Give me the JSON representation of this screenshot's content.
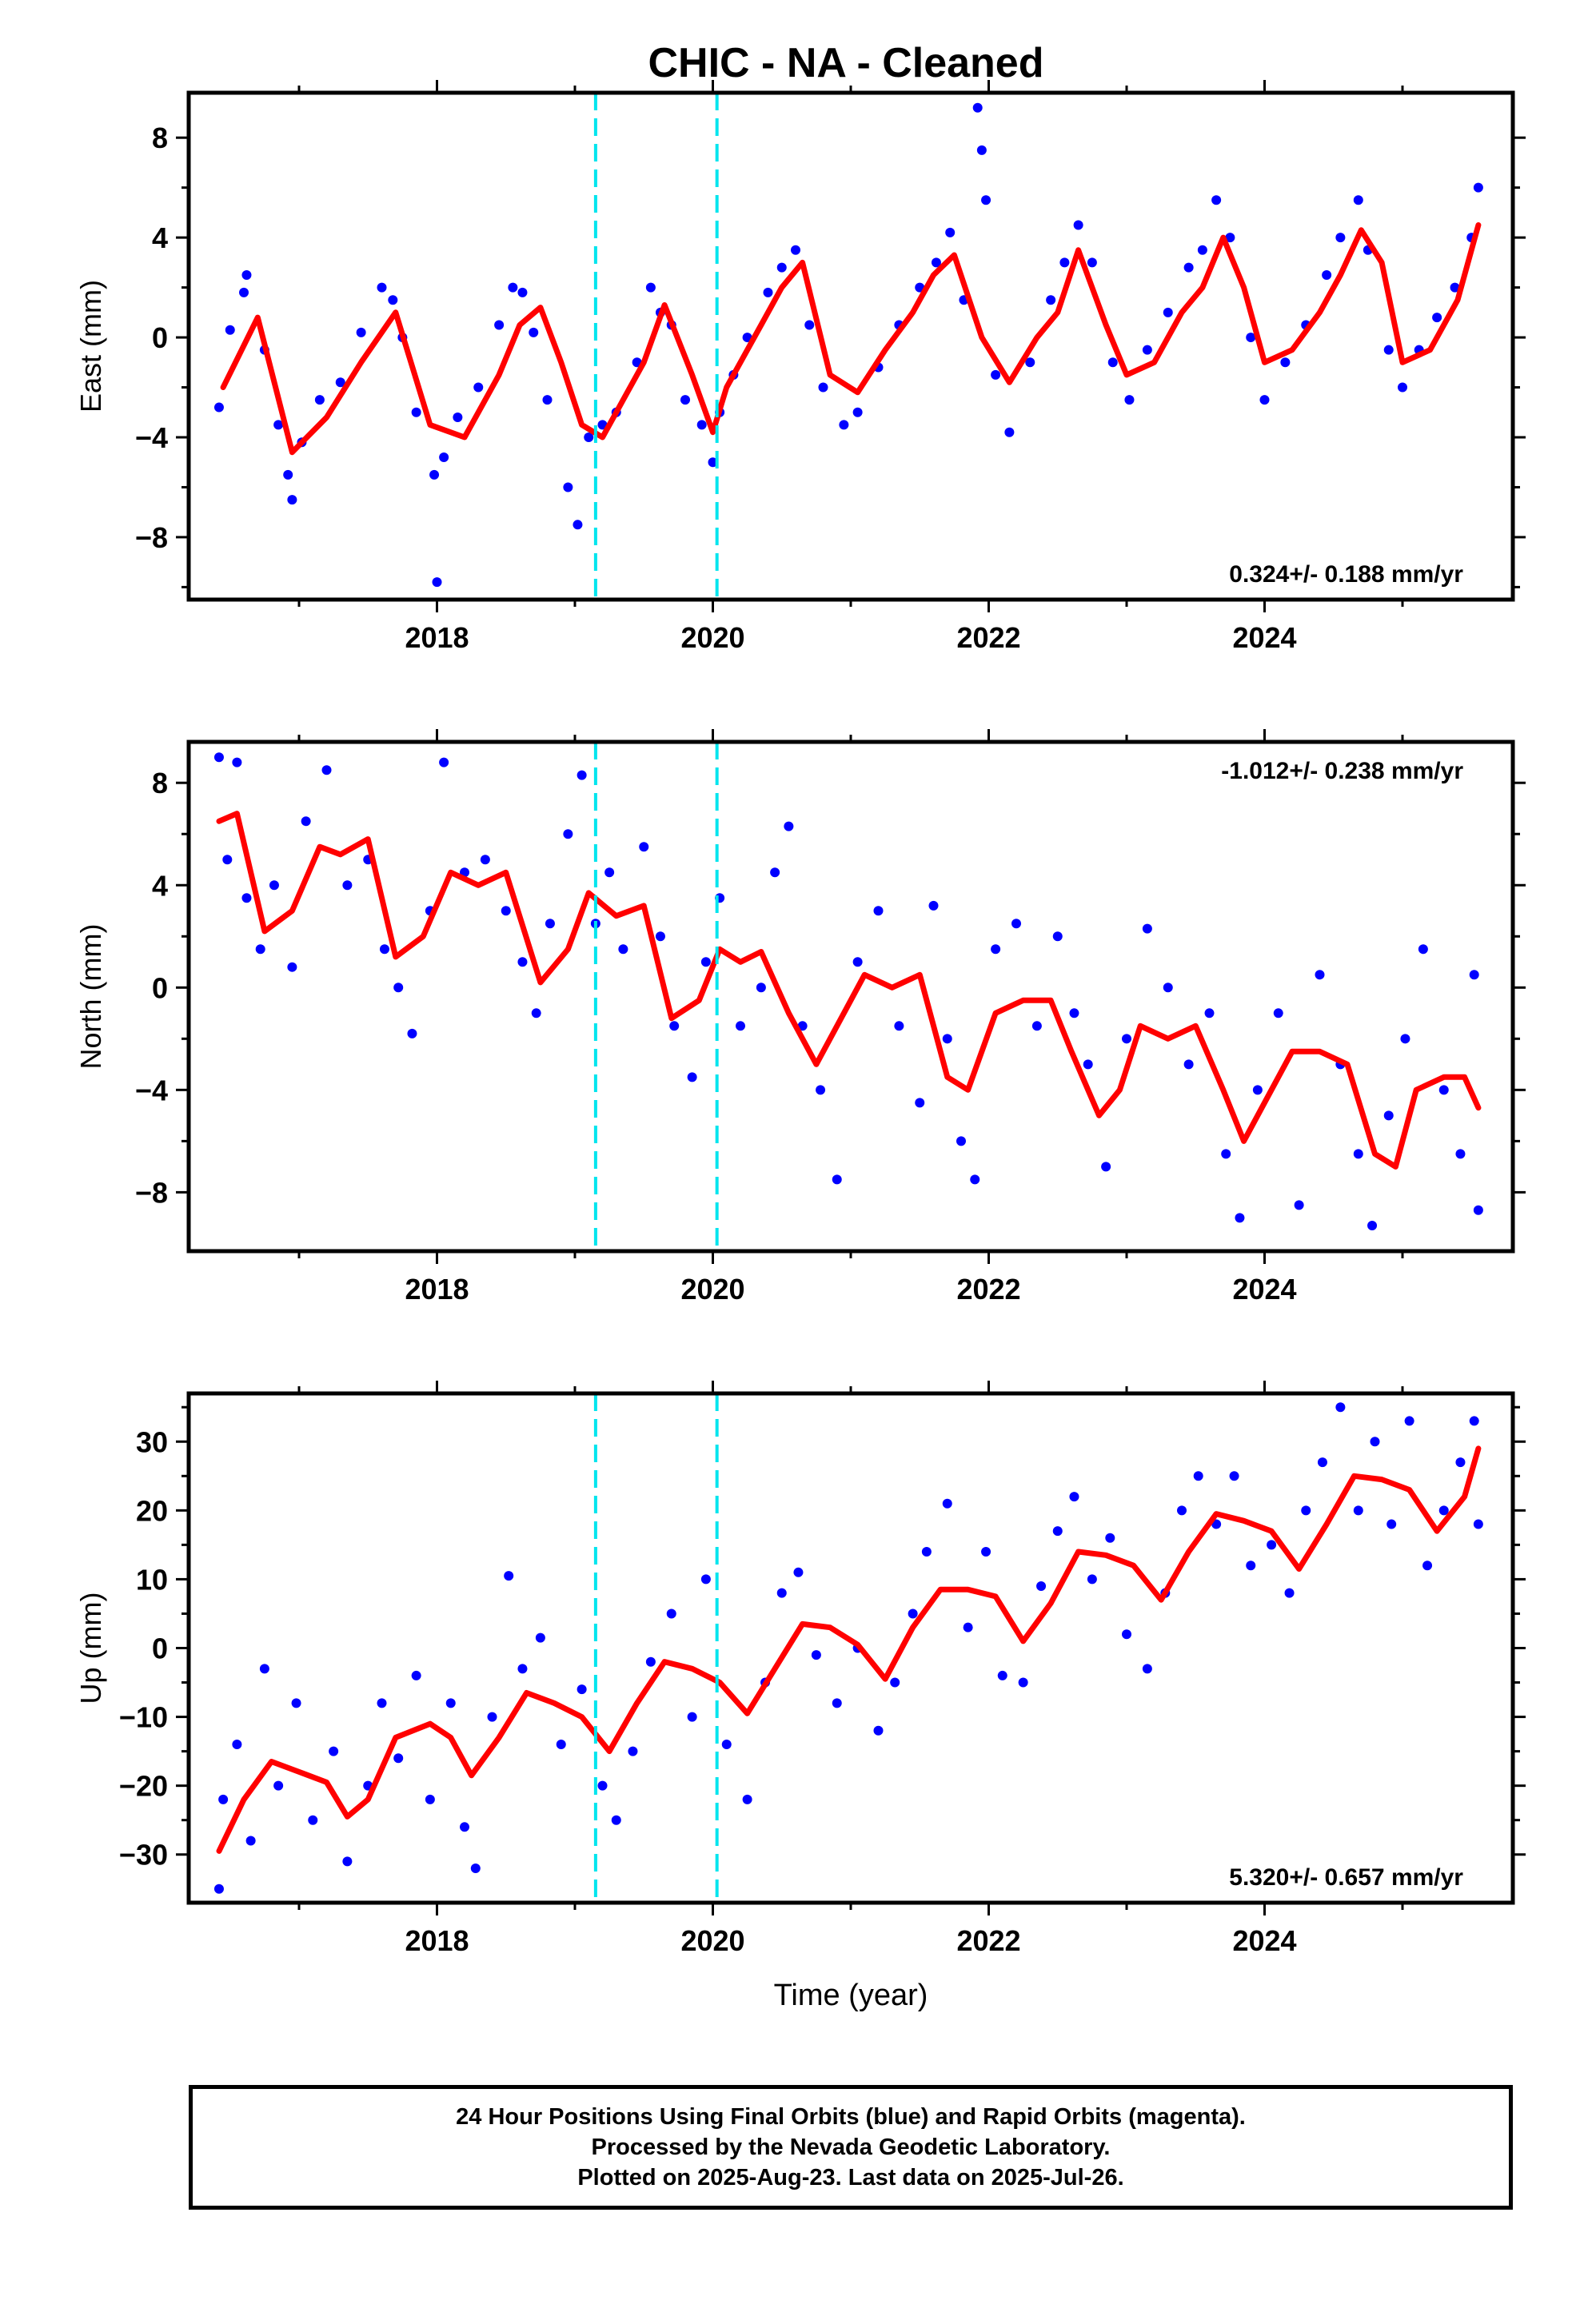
{
  "title": "CHIC  - NA - Cleaned",
  "colors": {
    "points": "#0000ff",
    "fit": "#ff0000",
    "breaks": "#00e5ee",
    "frame": "#000000"
  },
  "footer": {
    "lines": [
      "24 Hour Positions Using Final Orbits (blue) and Rapid Orbits (magenta).",
      "Processed by the Nevada Geodetic Laboratory.",
      "Plotted on 2025-Aug-23. Last data on 2025-Jul-26."
    ]
  },
  "chart_data": [
    {
      "type": "scatter",
      "name": "east",
      "ylabel": "East (mm)",
      "xlabel": "",
      "xlim": [
        2016.2,
        2025.8
      ],
      "ylim": [
        -10.5,
        9.8
      ],
      "xticks": [
        2018,
        2020,
        2022,
        2024
      ],
      "xminor": [
        2017,
        2019,
        2021,
        2023,
        2025
      ],
      "yticks": [
        -8,
        -4,
        0,
        4,
        8
      ],
      "yminor": [
        -10,
        -6,
        -2,
        2,
        6
      ],
      "breaks": [
        2019.15,
        2020.03
      ],
      "rate_label": "0.324+/- 0.188 mm/yr",
      "rate_position": "bottom-right",
      "fit": {
        "x": [
          2016.45,
          2016.7,
          2016.95,
          2017.2,
          2017.45,
          2017.7,
          2017.95,
          2018.2,
          2018.45,
          2018.6,
          2018.75,
          2018.9,
          2019.05,
          2019.2,
          2019.35,
          2019.5,
          2019.65,
          2019.85,
          2020.0,
          2020.1,
          2020.2,
          2020.35,
          2020.5,
          2020.65,
          2020.85,
          2021.05,
          2021.25,
          2021.45,
          2021.6,
          2021.75,
          2021.95,
          2022.15,
          2022.35,
          2022.5,
          2022.65,
          2022.85,
          2023.0,
          2023.2,
          2023.4,
          2023.55,
          2023.7,
          2023.85,
          2024.0,
          2024.2,
          2024.4,
          2024.55,
          2024.7,
          2024.85,
          2025.0,
          2025.2,
          2025.4,
          2025.55
        ],
        "y": [
          -2.0,
          0.8,
          -4.6,
          -3.2,
          -1.0,
          1.0,
          -3.5,
          -4.0,
          -1.5,
          0.5,
          1.2,
          -1.0,
          -3.5,
          -4.0,
          -2.5,
          -1.0,
          1.3,
          -1.5,
          -3.8,
          -2.0,
          -1.0,
          0.5,
          2.0,
          3.0,
          -1.5,
          -2.2,
          -0.5,
          1.0,
          2.5,
          3.3,
          0.0,
          -1.8,
          0.0,
          1.0,
          3.5,
          0.5,
          -1.5,
          -1.0,
          1.0,
          2.0,
          4.0,
          2.0,
          -1.0,
          -0.5,
          1.0,
          2.5,
          4.3,
          3.0,
          -1.0,
          -0.5,
          1.5,
          4.5
        ]
      },
      "points": {
        "x": [
          2016.42,
          2016.5,
          2016.6,
          2016.62,
          2016.75,
          2016.85,
          2016.92,
          2016.95,
          2017.02,
          2017.15,
          2017.3,
          2017.45,
          2017.6,
          2017.68,
          2017.75,
          2017.85,
          2017.98,
          2018.0,
          2018.05,
          2018.15,
          2018.3,
          2018.45,
          2018.55,
          2018.62,
          2018.7,
          2018.8,
          2018.95,
          2019.02,
          2019.1,
          2019.2,
          2019.3,
          2019.45,
          2019.55,
          2019.62,
          2019.7,
          2019.8,
          2019.92,
          2020.0,
          2020.05,
          2020.15,
          2020.25,
          2020.4,
          2020.5,
          2020.6,
          2020.7,
          2020.8,
          2020.95,
          2021.05,
          2021.2,
          2021.35,
          2021.5,
          2021.62,
          2021.72,
          2021.82,
          2021.92,
          2021.95,
          2021.98,
          2022.05,
          2022.15,
          2022.3,
          2022.45,
          2022.55,
          2022.65,
          2022.75,
          2022.9,
          2023.02,
          2023.15,
          2023.3,
          2023.45,
          2023.55,
          2023.65,
          2023.75,
          2023.9,
          2024.0,
          2024.15,
          2024.3,
          2024.45,
          2024.55,
          2024.68,
          2024.75,
          2024.9,
          2025.0,
          2025.12,
          2025.25,
          2025.38,
          2025.5,
          2025.55
        ],
        "y": [
          -2.8,
          0.3,
          1.8,
          2.5,
          -0.5,
          -3.5,
          -5.5,
          -6.5,
          -4.2,
          -2.5,
          -1.8,
          0.2,
          2.0,
          1.5,
          0.0,
          -3.0,
          -5.5,
          -9.8,
          -4.8,
          -3.2,
          -2.0,
          0.5,
          2.0,
          1.8,
          0.2,
          -2.5,
          -6.0,
          -7.5,
          -4.0,
          -3.5,
          -3.0,
          -1.0,
          2.0,
          1.0,
          0.5,
          -2.5,
          -3.5,
          -5.0,
          -3.0,
          -1.5,
          0.0,
          1.8,
          2.8,
          3.5,
          0.5,
          -2.0,
          -3.5,
          -3.0,
          -1.2,
          0.5,
          2.0,
          3.0,
          4.2,
          1.5,
          9.2,
          7.5,
          5.5,
          -1.5,
          -3.8,
          -1.0,
          1.5,
          3.0,
          4.5,
          3.0,
          -1.0,
          -2.5,
          -0.5,
          1.0,
          2.8,
          3.5,
          5.5,
          4.0,
          0.0,
          -2.5,
          -1.0,
          0.5,
          2.5,
          4.0,
          5.5,
          3.5,
          -0.5,
          -2.0,
          -0.5,
          0.8,
          2.0,
          4.0,
          6.0
        ]
      }
    },
    {
      "type": "scatter",
      "name": "north",
      "ylabel": "North (mm)",
      "xlabel": "",
      "xlim": [
        2016.2,
        2025.8
      ],
      "ylim": [
        -10.3,
        9.6
      ],
      "xticks": [
        2018,
        2020,
        2022,
        2024
      ],
      "xminor": [
        2017,
        2019,
        2021,
        2023,
        2025
      ],
      "yticks": [
        -8,
        -4,
        0,
        4,
        8
      ],
      "yminor": [
        -6,
        -2,
        2,
        6
      ],
      "breaks": [
        2019.15,
        2020.03
      ],
      "rate_label": "-1.012+/- 0.238 mm/yr",
      "rate_position": "top-right",
      "fit": {
        "x": [
          2016.42,
          2016.55,
          2016.75,
          2016.95,
          2017.15,
          2017.3,
          2017.5,
          2017.7,
          2017.9,
          2018.1,
          2018.3,
          2018.5,
          2018.75,
          2018.95,
          2019.1,
          2019.3,
          2019.5,
          2019.7,
          2019.9,
          2020.05,
          2020.2,
          2020.35,
          2020.55,
          2020.75,
          2020.95,
          2021.1,
          2021.3,
          2021.5,
          2021.7,
          2021.85,
          2022.05,
          2022.25,
          2022.45,
          2022.6,
          2022.8,
          2022.95,
          2023.1,
          2023.3,
          2023.5,
          2023.7,
          2023.85,
          2024.0,
          2024.2,
          2024.4,
          2024.6,
          2024.8,
          2024.95,
          2025.1,
          2025.3,
          2025.45,
          2025.55
        ],
        "y": [
          6.5,
          6.8,
          2.2,
          3.0,
          5.5,
          5.2,
          5.8,
          1.2,
          2.0,
          4.5,
          4.0,
          4.5,
          0.2,
          1.5,
          3.7,
          2.8,
          3.2,
          -1.2,
          -0.5,
          1.5,
          1.0,
          1.4,
          -1.0,
          -3.0,
          -1.0,
          0.5,
          0.0,
          0.5,
          -3.5,
          -4.0,
          -1.0,
          -0.5,
          -0.5,
          -2.5,
          -5.0,
          -4.0,
          -1.5,
          -2.0,
          -1.5,
          -4.0,
          -6.0,
          -4.5,
          -2.5,
          -2.5,
          -3.0,
          -6.5,
          -7.0,
          -4.0,
          -3.5,
          -3.5,
          -4.7
        ]
      },
      "points": {
        "x": [
          2016.42,
          2016.48,
          2016.55,
          2016.62,
          2016.72,
          2016.82,
          2016.95,
          2017.05,
          2017.2,
          2017.35,
          2017.5,
          2017.62,
          2017.72,
          2017.82,
          2017.95,
          2018.05,
          2018.2,
          2018.35,
          2018.5,
          2018.62,
          2018.72,
          2018.82,
          2018.95,
          2019.05,
          2019.15,
          2019.25,
          2019.35,
          2019.5,
          2019.62,
          2019.72,
          2019.85,
          2019.95,
          2020.05,
          2020.2,
          2020.35,
          2020.45,
          2020.55,
          2020.65,
          2020.78,
          2020.9,
          2021.05,
          2021.2,
          2021.35,
          2021.5,
          2021.6,
          2021.7,
          2021.8,
          2021.9,
          2022.05,
          2022.2,
          2022.35,
          2022.5,
          2022.62,
          2022.72,
          2022.85,
          2023.0,
          2023.15,
          2023.3,
          2023.45,
          2023.6,
          2023.72,
          2023.82,
          2023.95,
          2024.1,
          2024.25,
          2024.4,
          2024.55,
          2024.68,
          2024.78,
          2024.9,
          2025.02,
          2025.15,
          2025.3,
          2025.42,
          2025.52,
          2025.55
        ],
        "y": [
          9.0,
          5.0,
          8.8,
          3.5,
          1.5,
          4.0,
          0.8,
          6.5,
          8.5,
          4.0,
          5.0,
          1.5,
          0.0,
          -1.8,
          3.0,
          8.8,
          4.5,
          5.0,
          3.0,
          1.0,
          -1.0,
          2.5,
          6.0,
          8.3,
          2.5,
          4.5,
          1.5,
          5.5,
          2.0,
          -1.5,
          -3.5,
          1.0,
          3.5,
          -1.5,
          0.0,
          4.5,
          6.3,
          -1.5,
          -4.0,
          -7.5,
          1.0,
          3.0,
          -1.5,
          -4.5,
          3.2,
          -2.0,
          -6.0,
          -7.5,
          1.5,
          2.5,
          -1.5,
          2.0,
          -1.0,
          -3.0,
          -7.0,
          -2.0,
          2.3,
          0.0,
          -3.0,
          -1.0,
          -6.5,
          -9.0,
          -4.0,
          -1.0,
          -8.5,
          0.5,
          -3.0,
          -6.5,
          -9.3,
          -5.0,
          -2.0,
          1.5,
          -4.0,
          -6.5,
          0.5,
          -8.7
        ]
      }
    },
    {
      "type": "scatter",
      "name": "up",
      "ylabel": "Up (mm)",
      "xlabel": "Time (year)",
      "xlim": [
        2016.2,
        2025.8
      ],
      "ylim": [
        -37,
        37
      ],
      "xticks": [
        2018,
        2020,
        2022,
        2024
      ],
      "xminor": [
        2017,
        2019,
        2021,
        2023,
        2025
      ],
      "yticks": [
        -30,
        -20,
        -10,
        0,
        10,
        20,
        30
      ],
      "yminor": [
        -25,
        -15,
        -5,
        5,
        15,
        25,
        35
      ],
      "breaks": [
        2019.15,
        2020.03
      ],
      "rate_label": "5.320+/- 0.657 mm/yr",
      "rate_position": "bottom-right",
      "fit": {
        "x": [
          2016.42,
          2016.6,
          2016.8,
          2017.0,
          2017.2,
          2017.35,
          2017.5,
          2017.7,
          2017.95,
          2018.1,
          2018.25,
          2018.45,
          2018.65,
          2018.85,
          2019.05,
          2019.25,
          2019.45,
          2019.65,
          2019.85,
          2020.05,
          2020.25,
          2020.45,
          2020.65,
          2020.85,
          2021.05,
          2021.25,
          2021.45,
          2021.65,
          2021.85,
          2022.05,
          2022.25,
          2022.45,
          2022.65,
          2022.85,
          2023.05,
          2023.25,
          2023.45,
          2023.65,
          2023.85,
          2024.05,
          2024.25,
          2024.45,
          2024.65,
          2024.85,
          2025.05,
          2025.25,
          2025.45,
          2025.55
        ],
        "y": [
          -29.5,
          -22.0,
          -16.5,
          -18.0,
          -19.5,
          -24.5,
          -22.0,
          -13.0,
          -11.0,
          -13.0,
          -18.5,
          -13.0,
          -6.5,
          -8.0,
          -10.0,
          -15.0,
          -8.0,
          -2.0,
          -3.0,
          -5.0,
          -9.5,
          -3.0,
          3.5,
          3.0,
          0.5,
          -4.5,
          3.0,
          8.5,
          8.5,
          7.5,
          1.0,
          6.5,
          14.0,
          13.5,
          12.0,
          7.0,
          14.0,
          19.5,
          18.5,
          17.0,
          11.5,
          18.0,
          25.0,
          24.5,
          23.0,
          17.0,
          22.0,
          29.0
        ]
      },
      "points": {
        "x": [
          2016.42,
          2016.45,
          2016.55,
          2016.65,
          2016.75,
          2016.85,
          2016.98,
          2017.1,
          2017.25,
          2017.35,
          2017.5,
          2017.6,
          2017.72,
          2017.85,
          2017.95,
          2018.1,
          2018.2,
          2018.28,
          2018.4,
          2018.52,
          2018.62,
          2018.75,
          2018.9,
          2019.05,
          2019.2,
          2019.3,
          2019.42,
          2019.55,
          2019.7,
          2019.85,
          2019.95,
          2020.1,
          2020.25,
          2020.38,
          2020.5,
          2020.62,
          2020.75,
          2020.9,
          2021.05,
          2021.2,
          2021.32,
          2021.45,
          2021.55,
          2021.7,
          2021.85,
          2021.98,
          2022.1,
          2022.25,
          2022.38,
          2022.5,
          2022.62,
          2022.75,
          2022.88,
          2023.0,
          2023.15,
          2023.28,
          2023.4,
          2023.52,
          2023.65,
          2023.78,
          2023.9,
          2024.05,
          2024.18,
          2024.3,
          2024.42,
          2024.55,
          2024.68,
          2024.8,
          2024.92,
          2025.05,
          2025.18,
          2025.3,
          2025.42,
          2025.52,
          2025.55
        ],
        "y": [
          -35.0,
          -22.0,
          -14.0,
          -28.0,
          -3.0,
          -20.0,
          -8.0,
          -25.0,
          -15.0,
          -31.0,
          -20.0,
          -8.0,
          -16.0,
          -4.0,
          -22.0,
          -8.0,
          -26.0,
          -32.0,
          -10.0,
          10.5,
          -3.0,
          1.5,
          -14.0,
          -6.0,
          -20.0,
          -25.0,
          -15.0,
          -2.0,
          5.0,
          -10.0,
          10.0,
          -14.0,
          -22.0,
          -5.0,
          8.0,
          11.0,
          -1.0,
          -8.0,
          0.0,
          -12.0,
          -5.0,
          5.0,
          14.0,
          21.0,
          3.0,
          14.0,
          -4.0,
          -5.0,
          9.0,
          17.0,
          22.0,
          10.0,
          16.0,
          2.0,
          -3.0,
          8.0,
          20.0,
          25.0,
          18.0,
          25.0,
          12.0,
          15.0,
          8.0,
          20.0,
          27.0,
          35.0,
          20.0,
          30.0,
          18.0,
          33.0,
          12.0,
          20.0,
          27.0,
          33.0,
          18.0
        ]
      }
    }
  ]
}
